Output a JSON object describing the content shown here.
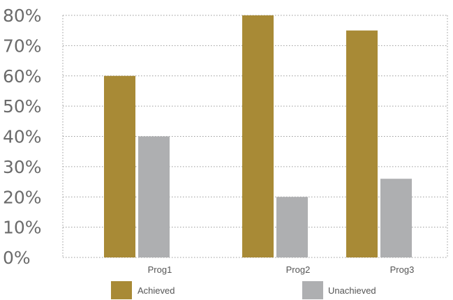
{
  "chart_data": {
    "type": "bar",
    "title": "",
    "xlabel": "",
    "ylabel": "",
    "categories": [
      "Prog1",
      "Prog2",
      "Prog3"
    ],
    "series": [
      {
        "name": "Achieved",
        "values": [
          60,
          80,
          75
        ],
        "color": "#a88a36"
      },
      {
        "name": "Unachieved",
        "values": [
          40,
          20,
          26
        ],
        "color": "#aeafb1"
      }
    ],
    "ylim": [
      0,
      80
    ],
    "yticks": [
      "0%",
      "10%",
      "20%",
      "30%",
      "40%",
      "50%",
      "60%",
      "70%",
      "80%"
    ],
    "grid": true,
    "legend_position": "bottom"
  }
}
